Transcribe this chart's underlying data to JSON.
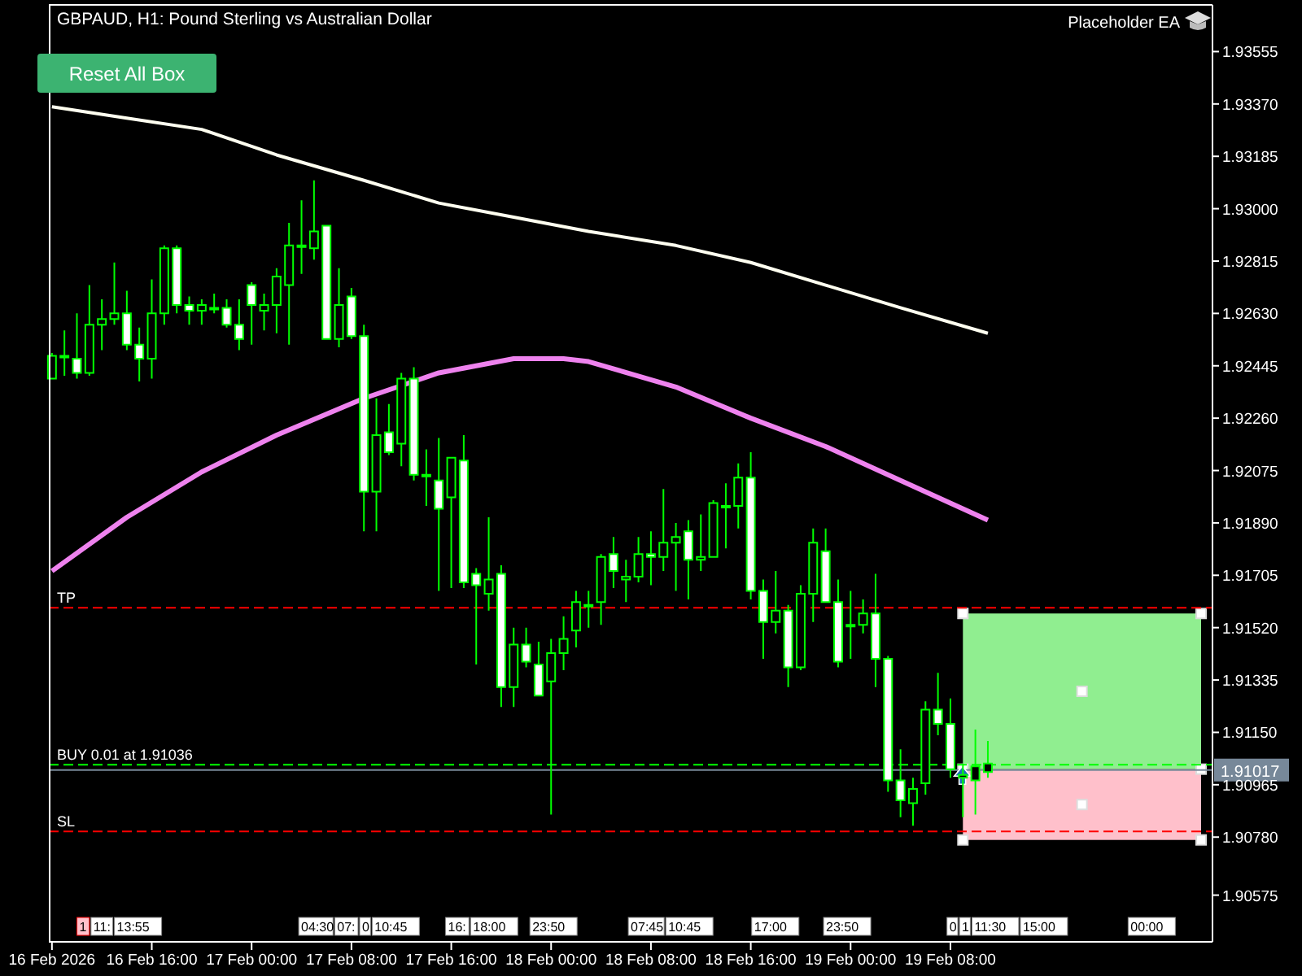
{
  "chart_data": {
    "type": "candlestick",
    "title": "GBPAUD, H1:  Pound Sterling vs Australian Dollar",
    "color": "#00ff00",
    "x": [
      "2026-02-16T08:00",
      "2026-02-16T09:00",
      "2026-02-16T10:00",
      "2026-02-16T11:00",
      "2026-02-16T12:00",
      "2026-02-16T13:00",
      "2026-02-16T14:00",
      "2026-02-16T15:00",
      "2026-02-16T16:00",
      "2026-02-16T17:00",
      "2026-02-16T18:00",
      "2026-02-16T19:00",
      "2026-02-16T20:00",
      "2026-02-16T21:00",
      "2026-02-16T22:00",
      "2026-02-16T23:00",
      "2026-02-17T00:00",
      "2026-02-17T01:00",
      "2026-02-17T02:00",
      "2026-02-17T03:00",
      "2026-02-17T04:00",
      "2026-02-17T05:00",
      "2026-02-17T06:00",
      "2026-02-17T07:00",
      "2026-02-17T08:00",
      "2026-02-17T09:00",
      "2026-02-17T10:00",
      "2026-02-17T11:00",
      "2026-02-17T12:00",
      "2026-02-17T13:00",
      "2026-02-17T14:00",
      "2026-02-17T15:00",
      "2026-02-17T16:00",
      "2026-02-17T17:00",
      "2026-02-17T18:00",
      "2026-02-17T19:00",
      "2026-02-17T20:00",
      "2026-02-17T21:00",
      "2026-02-17T22:00",
      "2026-02-17T23:00",
      "2026-02-18T00:00",
      "2026-02-18T01:00",
      "2026-02-18T02:00",
      "2026-02-18T03:00",
      "2026-02-18T04:00",
      "2026-02-18T05:00",
      "2026-02-18T06:00",
      "2026-02-18T07:00",
      "2026-02-18T08:00",
      "2026-02-18T09:00",
      "2026-02-18T10:00",
      "2026-02-18T11:00",
      "2026-02-18T12:00",
      "2026-02-18T13:00",
      "2026-02-18T14:00",
      "2026-02-18T15:00",
      "2026-02-18T16:00",
      "2026-02-18T17:00",
      "2026-02-18T18:00",
      "2026-02-18T19:00",
      "2026-02-18T20:00",
      "2026-02-18T21:00",
      "2026-02-18T22:00",
      "2026-02-18T23:00",
      "2026-02-19T00:00",
      "2026-02-19T01:00",
      "2026-02-19T02:00",
      "2026-02-19T03:00",
      "2026-02-19T04:00",
      "2026-02-19T05:00",
      "2026-02-19T06:00",
      "2026-02-19T07:00",
      "2026-02-19T08:00",
      "2026-02-19T09:00",
      "2026-02-19T10:00",
      "2026-02-19T11:00"
    ],
    "ohlc": [
      [
        1.924,
        1.9249,
        1.924,
        1.9248
      ],
      [
        1.9248,
        1.9257,
        1.9241,
        1.9248
      ],
      [
        1.9247,
        1.9263,
        1.924,
        1.9242
      ],
      [
        1.9242,
        1.9273,
        1.9241,
        1.9259
      ],
      [
        1.9259,
        1.9268,
        1.925,
        1.9261
      ],
      [
        1.9261,
        1.9281,
        1.9259,
        1.9263
      ],
      [
        1.9263,
        1.9271,
        1.925,
        1.9252
      ],
      [
        1.9252,
        1.9258,
        1.9239,
        1.9247
      ],
      [
        1.9247,
        1.9275,
        1.924,
        1.9263
      ],
      [
        1.9263,
        1.9287,
        1.9259,
        1.9286
      ],
      [
        1.9286,
        1.9287,
        1.9263,
        1.9266
      ],
      [
        1.9266,
        1.9269,
        1.9259,
        1.9264
      ],
      [
        1.9264,
        1.9268,
        1.9259,
        1.9266
      ],
      [
        1.9265,
        1.927,
        1.9263,
        1.9265
      ],
      [
        1.9265,
        1.9268,
        1.9258,
        1.9259
      ],
      [
        1.9259,
        1.9268,
        1.925,
        1.9254
      ],
      [
        1.9273,
        1.9274,
        1.9252,
        1.9266
      ],
      [
        1.9264,
        1.927,
        1.9257,
        1.9266
      ],
      [
        1.9266,
        1.9279,
        1.9256,
        1.9276
      ],
      [
        1.9273,
        1.9295,
        1.9252,
        1.9287
      ],
      [
        1.9287,
        1.9303,
        1.9277,
        1.9287
      ],
      [
        1.9286,
        1.931,
        1.9282,
        1.9292
      ],
      [
        1.9294,
        1.9294,
        1.9254,
        1.9254
      ],
      [
        1.9254,
        1.9279,
        1.9251,
        1.9266
      ],
      [
        1.9269,
        1.9272,
        1.9254,
        1.9255
      ],
      [
        1.9255,
        1.9259,
        1.9186,
        1.92
      ],
      [
        1.92,
        1.9233,
        1.9186,
        1.922
      ],
      [
        1.9221,
        1.9231,
        1.9213,
        1.9214
      ],
      [
        1.9217,
        1.9242,
        1.9209,
        1.924
      ],
      [
        1.924,
        1.9244,
        1.9204,
        1.9206
      ],
      [
        1.9206,
        1.9215,
        1.9195,
        1.9206
      ],
      [
        1.9204,
        1.9219,
        1.9165,
        1.9194
      ],
      [
        1.9198,
        1.9212,
        1.9166,
        1.9212
      ],
      [
        1.9211,
        1.922,
        1.9166,
        1.9168
      ],
      [
        1.9171,
        1.9173,
        1.9139,
        1.9167
      ],
      [
        1.9164,
        1.9191,
        1.9158,
        1.9169
      ],
      [
        1.9171,
        1.9174,
        1.9124,
        1.9131
      ],
      [
        1.9131,
        1.9152,
        1.9124,
        1.9146
      ],
      [
        1.9146,
        1.9152,
        1.9138,
        1.914
      ],
      [
        1.9139,
        1.9147,
        1.9128,
        1.9128
      ],
      [
        1.9133,
        1.9148,
        1.9086,
        1.9143
      ],
      [
        1.9143,
        1.9156,
        1.9137,
        1.9148
      ],
      [
        1.9151,
        1.9165,
        1.9145,
        1.9161
      ],
      [
        1.916,
        1.9165,
        1.9152,
        1.916
      ],
      [
        1.9161,
        1.9178,
        1.9153,
        1.9177
      ],
      [
        1.9178,
        1.9184,
        1.9166,
        1.9172
      ],
      [
        1.9169,
        1.9176,
        1.9161,
        1.917
      ],
      [
        1.917,
        1.9184,
        1.9168,
        1.9178
      ],
      [
        1.9178,
        1.9186,
        1.9167,
        1.9177
      ],
      [
        1.9177,
        1.9201,
        1.9172,
        1.9182
      ],
      [
        1.9182,
        1.9189,
        1.9165,
        1.9184
      ],
      [
        1.9186,
        1.919,
        1.9162,
        1.9176
      ],
      [
        1.9176,
        1.9192,
        1.9172,
        1.9177
      ],
      [
        1.9177,
        1.9197,
        1.9177,
        1.9196
      ],
      [
        1.9195,
        1.9203,
        1.918,
        1.9195
      ],
      [
        1.9195,
        1.921,
        1.9187,
        1.9205
      ],
      [
        1.9205,
        1.9214,
        1.9162,
        1.9165
      ],
      [
        1.9165,
        1.9169,
        1.9141,
        1.9154
      ],
      [
        1.9154,
        1.9172,
        1.915,
        1.9158
      ],
      [
        1.9158,
        1.916,
        1.9131,
        1.9138
      ],
      [
        1.9138,
        1.9167,
        1.9137,
        1.9164
      ],
      [
        1.9164,
        1.9187,
        1.9154,
        1.9182
      ],
      [
        1.9179,
        1.9187,
        1.9161,
        1.9161
      ],
      [
        1.9161,
        1.9169,
        1.9138,
        1.914
      ],
      [
        1.9153,
        1.9165,
        1.9141,
        1.9153
      ],
      [
        1.9153,
        1.9162,
        1.915,
        1.9157
      ],
      [
        1.9157,
        1.9171,
        1.9131,
        1.9141
      ],
      [
        1.9141,
        1.9142,
        1.9094,
        1.9098
      ],
      [
        1.9098,
        1.9109,
        1.9085,
        1.9091
      ],
      [
        1.909,
        1.9099,
        1.9082,
        1.9095
      ],
      [
        1.9097,
        1.9126,
        1.9093,
        1.9123
      ],
      [
        1.9123,
        1.9136,
        1.9114,
        1.9118
      ],
      [
        1.9118,
        1.9127,
        1.9099,
        1.9102
      ],
      [
        1.9099,
        1.9104,
        1.9085,
        1.91
      ],
      [
        1.9098,
        1.9116,
        1.9086,
        1.9103
      ],
      [
        1.9101,
        1.9112,
        1.9099,
        1.9104
      ]
    ],
    "series": [
      {
        "type": "line",
        "color": "#fffff0",
        "x": [
          "2026-02-16T08:00",
          "2026-02-16T14:00",
          "2026-02-16T20:00",
          "2026-02-17T02:00",
          "2026-02-17T09:00",
          "2026-02-17T15:00",
          "2026-02-17T21:00",
          "2026-02-18T03:00",
          "2026-02-18T10:00",
          "2026-02-18T16:00",
          "2026-02-18T22:00",
          "2026-02-19T04:00",
          "2026-02-19T11:00"
        ],
        "values": [
          1.9336,
          1.9332,
          1.9328,
          1.9319,
          1.931,
          1.9302,
          1.9297,
          1.9292,
          1.9287,
          1.9281,
          1.9273,
          1.9265,
          1.9256
        ]
      },
      {
        "type": "line",
        "color": "#ee82ee",
        "x": [
          "2026-02-16T08:00",
          "2026-02-16T14:00",
          "2026-02-16T20:00",
          "2026-02-17T02:00",
          "2026-02-17T09:00",
          "2026-02-17T15:00",
          "2026-02-17T21:00",
          "2026-02-18T01:00",
          "2026-02-18T03:00",
          "2026-02-18T10:00",
          "2026-02-18T16:00",
          "2026-02-18T22:00",
          "2026-02-19T04:00",
          "2026-02-19T11:00"
        ],
        "values": [
          1.9172,
          1.9191,
          1.9207,
          1.922,
          1.9233,
          1.9242,
          1.9247,
          1.9247,
          1.9246,
          1.9237,
          1.9226,
          1.9216,
          1.9204,
          1.919
        ]
      }
    ],
    "xlim": [
      "2026-02-16T07:45",
      "2026-02-20T05:00"
    ],
    "xticks": [
      {
        "value": "2026-02-16T08:00",
        "label": "16 Feb 2026"
      },
      {
        "value": "2026-02-16T16:00",
        "label": "16 Feb 16:00"
      },
      {
        "value": "2026-02-17T00:00",
        "label": "17 Feb 00:00"
      },
      {
        "value": "2026-02-17T08:00",
        "label": "17 Feb 08:00"
      },
      {
        "value": "2026-02-17T16:00",
        "label": "17 Feb 16:00"
      },
      {
        "value": "2026-02-18T00:00",
        "label": "18 Feb 00:00"
      },
      {
        "value": "2026-02-18T08:00",
        "label": "18 Feb 08:00"
      },
      {
        "value": "2026-02-18T16:00",
        "label": "18 Feb 16:00"
      },
      {
        "value": "2026-02-19T00:00",
        "label": "19 Feb 00:00"
      },
      {
        "value": "2026-02-19T08:00",
        "label": "19 Feb 08:00"
      }
    ],
    "ylim": [
      1.9041,
      1.9372
    ],
    "yticks": [
      {
        "value": 1.93555,
        "label": "1.93555"
      },
      {
        "value": 1.9337,
        "label": "1.93370"
      },
      {
        "value": 1.93185,
        "label": "1.93185"
      },
      {
        "value": 1.93,
        "label": "1.93000"
      },
      {
        "value": 1.92815,
        "label": "1.92815"
      },
      {
        "value": 1.9263,
        "label": "1.92630"
      },
      {
        "value": 1.92445,
        "label": "1.92445"
      },
      {
        "value": 1.9226,
        "label": "1.92260"
      },
      {
        "value": 1.92075,
        "label": "1.92075"
      },
      {
        "value": 1.9189,
        "label": "1.91890"
      },
      {
        "value": 1.91705,
        "label": "1.91705"
      },
      {
        "value": 1.9152,
        "label": "1.91520"
      },
      {
        "value": 1.91335,
        "label": "1.91335"
      },
      {
        "value": 1.9115,
        "label": "1.91150"
      },
      {
        "value": 1.90965,
        "label": "1.90965"
      },
      {
        "value": 1.9078,
        "label": "1.90780"
      },
      {
        "value": 1.90575,
        "label": "1.90575"
      }
    ],
    "ref_lines": [
      {
        "axis": "y",
        "value": 1.9159,
        "label": "TP",
        "color": "#ff0000",
        "line_style": "dashed"
      },
      {
        "axis": "y",
        "value": 1.91036,
        "label": "BUY 0.01 at 1.91036",
        "color": "#00ff00",
        "line_style": "dashed"
      },
      {
        "axis": "y",
        "value": 1.91017,
        "label": "1.91017",
        "color": "#778899",
        "line_style": "solid"
      },
      {
        "axis": "y",
        "value": 1.908,
        "label": "SL",
        "color": "#ff0000",
        "line_style": "dashed"
      }
    ],
    "bands": [
      {
        "axis": "y",
        "from": 1.9102,
        "to": 1.9157,
        "color": "#90ee90"
      },
      {
        "axis": "y",
        "from": 1.9077,
        "to": 1.9102,
        "color": "#ffc0cb"
      }
    ],
    "annotations": [
      "Reset All Box",
      "Placeholder EA",
      "1",
      "11:",
      "13:55",
      "04:30",
      "07:",
      "0",
      "10:45",
      "16:",
      "18:00",
      "23:50",
      "07:45",
      "10:45",
      "17:00",
      "23:50",
      "0",
      "1",
      "11:30",
      "15:00",
      "00:00"
    ],
    "grid": false
  }
}
